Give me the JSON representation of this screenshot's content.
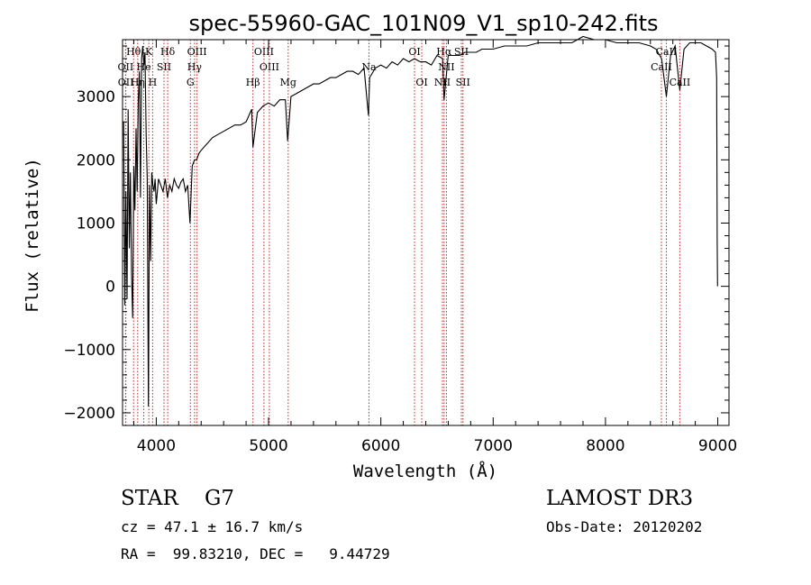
{
  "chart_data": {
    "type": "line",
    "title": "spec-55960-GAC_101N09_V1_sp10-242.fits",
    "xlabel": "Wavelength (Å)",
    "ylabel": "Flux (relative)",
    "xlim": [
      3700,
      9100
    ],
    "ylim": [
      -2200,
      3900
    ],
    "x_ticks": [
      4000,
      5000,
      6000,
      7000,
      8000,
      9000
    ],
    "x_tick_labels": [
      "4000",
      "5000",
      "6000",
      "7000",
      "8000",
      "9000"
    ],
    "y_ticks": [
      -2000,
      -1000,
      0,
      1000,
      2000,
      3000
    ],
    "y_tick_labels": [
      "−2000",
      "−1000",
      "0",
      "1000",
      "2000",
      "3000"
    ],
    "grid": false,
    "colors": {
      "spectrum": "#000000",
      "line_markers": "#cc2222"
    },
    "series": [
      {
        "name": "spectrum",
        "x": [
          3710,
          3720,
          3730,
          3740,
          3750,
          3760,
          3770,
          3780,
          3790,
          3800,
          3810,
          3820,
          3830,
          3840,
          3850,
          3860,
          3870,
          3880,
          3890,
          3900,
          3910,
          3920,
          3930,
          3940,
          3950,
          3960,
          3970,
          3980,
          3990,
          4000,
          4020,
          4040,
          4060,
          4080,
          4100,
          4120,
          4140,
          4160,
          4180,
          4200,
          4220,
          4240,
          4260,
          4280,
          4300,
          4320,
          4340,
          4360,
          4380,
          4400,
          4450,
          4500,
          4550,
          4600,
          4650,
          4700,
          4750,
          4800,
          4850,
          4861,
          4900,
          4950,
          5000,
          5050,
          5100,
          5150,
          5170,
          5200,
          5250,
          5300,
          5350,
          5400,
          5450,
          5500,
          5550,
          5600,
          5650,
          5700,
          5750,
          5800,
          5850,
          5890,
          5900,
          5950,
          6000,
          6050,
          6100,
          6150,
          6200,
          6250,
          6300,
          6350,
          6400,
          6450,
          6500,
          6550,
          6563,
          6600,
          6650,
          6700,
          6750,
          6800,
          6850,
          6900,
          6950,
          7000,
          7100,
          7200,
          7300,
          7400,
          7500,
          7600,
          7700,
          7800,
          7900,
          8000,
          8100,
          8200,
          8300,
          8400,
          8450,
          8500,
          8542,
          8580,
          8620,
          8662,
          8700,
          8750,
          8800,
          8850,
          8900,
          8950,
          8980,
          8990,
          8995,
          8998
        ],
        "values": [
          2600,
          -300,
          1500,
          -200,
          2800,
          600,
          1800,
          200,
          -500,
          1900,
          1200,
          2500,
          1500,
          2900,
          3400,
          1400,
          3600,
          3800,
          3500,
          3700,
          2400,
          1700,
          -1900,
          1600,
          400,
          1800,
          1600,
          1500,
          1700,
          1300,
          1700,
          1600,
          1500,
          1700,
          1400,
          1600,
          1500,
          1700,
          1600,
          1550,
          1650,
          1700,
          1500,
          1600,
          1000,
          1900,
          2000,
          2000,
          2100,
          2150,
          2250,
          2350,
          2400,
          2450,
          2500,
          2550,
          2550,
          2600,
          2800,
          2200,
          2750,
          2850,
          2900,
          2850,
          2950,
          2950,
          2300,
          3000,
          3050,
          3100,
          3150,
          3200,
          3200,
          3250,
          3300,
          3300,
          3350,
          3400,
          3400,
          3350,
          3450,
          2700,
          3300,
          3450,
          3500,
          3450,
          3550,
          3500,
          3600,
          3550,
          3600,
          3550,
          3550,
          3500,
          3650,
          3600,
          2950,
          3650,
          3650,
          3650,
          3700,
          3700,
          3700,
          3750,
          3750,
          3750,
          3800,
          3800,
          3800,
          3850,
          3850,
          3850,
          3850,
          3950,
          3900,
          3900,
          3850,
          3850,
          3850,
          3800,
          3750,
          3600,
          3000,
          3650,
          3800,
          3100,
          3750,
          3850,
          3850,
          3850,
          3800,
          3750,
          3700,
          3300,
          700,
          0
        ]
      }
    ],
    "line_markers": [
      {
        "name": "Hθ",
        "x": 3798
      },
      {
        "name": "OII",
        "x": 3727
      },
      {
        "name": "OII",
        "x": 3729
      },
      {
        "name": "Hη",
        "x": 3835
      },
      {
        "name": "He",
        "x": 3889
      },
      {
        "name": "K",
        "x": 3934
      },
      {
        "name": "SII",
        "x": 4069
      },
      {
        "name": "H",
        "x": 3968
      },
      {
        "name": "Hδ",
        "x": 4102
      },
      {
        "name": "OIII",
        "x": 4363
      },
      {
        "name": "Hγ",
        "x": 4341
      },
      {
        "name": "G",
        "x": 4304
      },
      {
        "name": "Hβ",
        "x": 4861
      },
      {
        "name": "OIII",
        "x": 4959
      },
      {
        "name": "OIII",
        "x": 5007
      },
      {
        "name": "Mg",
        "x": 5175
      },
      {
        "name": "Na",
        "x": 5894
      },
      {
        "name": "OI",
        "x": 6300
      },
      {
        "name": "OI",
        "x": 6364
      },
      {
        "name": "Hα",
        "x": 6563
      },
      {
        "name": "NII",
        "x": 6548
      },
      {
        "name": "NII",
        "x": 6584
      },
      {
        "name": "SII",
        "x": 6717
      },
      {
        "name": "SII",
        "x": 6731
      },
      {
        "name": "CaII",
        "x": 8498
      },
      {
        "name": "CaII",
        "x": 8542
      },
      {
        "name": "CaII",
        "x": 8662
      }
    ],
    "line_label_texts": {
      "row1": [
        {
          "text": "Hθ",
          "x": 3798
        },
        {
          "text": "K",
          "x": 3934
        },
        {
          "text": "Hδ",
          "x": 4102
        },
        {
          "text": "OIII",
          "x": 4363
        },
        {
          "text": "OIII",
          "x": 4959
        },
        {
          "text": "OI",
          "x": 6300
        },
        {
          "text": "Hα",
          "x": 6563
        },
        {
          "text": "SII",
          "x": 6717
        },
        {
          "text": "CaII",
          "x": 8542
        }
      ],
      "row2": [
        {
          "text": "OII",
          "x": 3727
        },
        {
          "text": "He",
          "x": 3889
        },
        {
          "text": "SII",
          "x": 4069
        },
        {
          "text": "Hγ",
          "x": 4341
        },
        {
          "text": "OIII",
          "x": 5007
        },
        {
          "text": "Na",
          "x": 5894
        },
        {
          "text": "NII",
          "x": 6584
        },
        {
          "text": "CaII",
          "x": 8498
        }
      ],
      "row3": [
        {
          "text": "OII",
          "x": 3729
        },
        {
          "text": "Hη",
          "x": 3835
        },
        {
          "text": "H",
          "x": 3968
        },
        {
          "text": "G",
          "x": 4304
        },
        {
          "text": "Hβ",
          "x": 4861
        },
        {
          "text": "Mg",
          "x": 5175
        },
        {
          "text": "OI",
          "x": 6364
        },
        {
          "text": "NII",
          "x": 6548
        },
        {
          "text": "SII",
          "x": 6731
        },
        {
          "text": "CaII",
          "x": 8662
        }
      ]
    }
  },
  "info": {
    "class_line": "STAR    G7",
    "cz_line": "cz = 47.1 ± 16.7 km/s",
    "radec_line": "RA =  99.83210, DEC =   9.44729",
    "survey_line": "LAMOST DR3",
    "obsdate_line": "Obs-Date: 20120202"
  }
}
